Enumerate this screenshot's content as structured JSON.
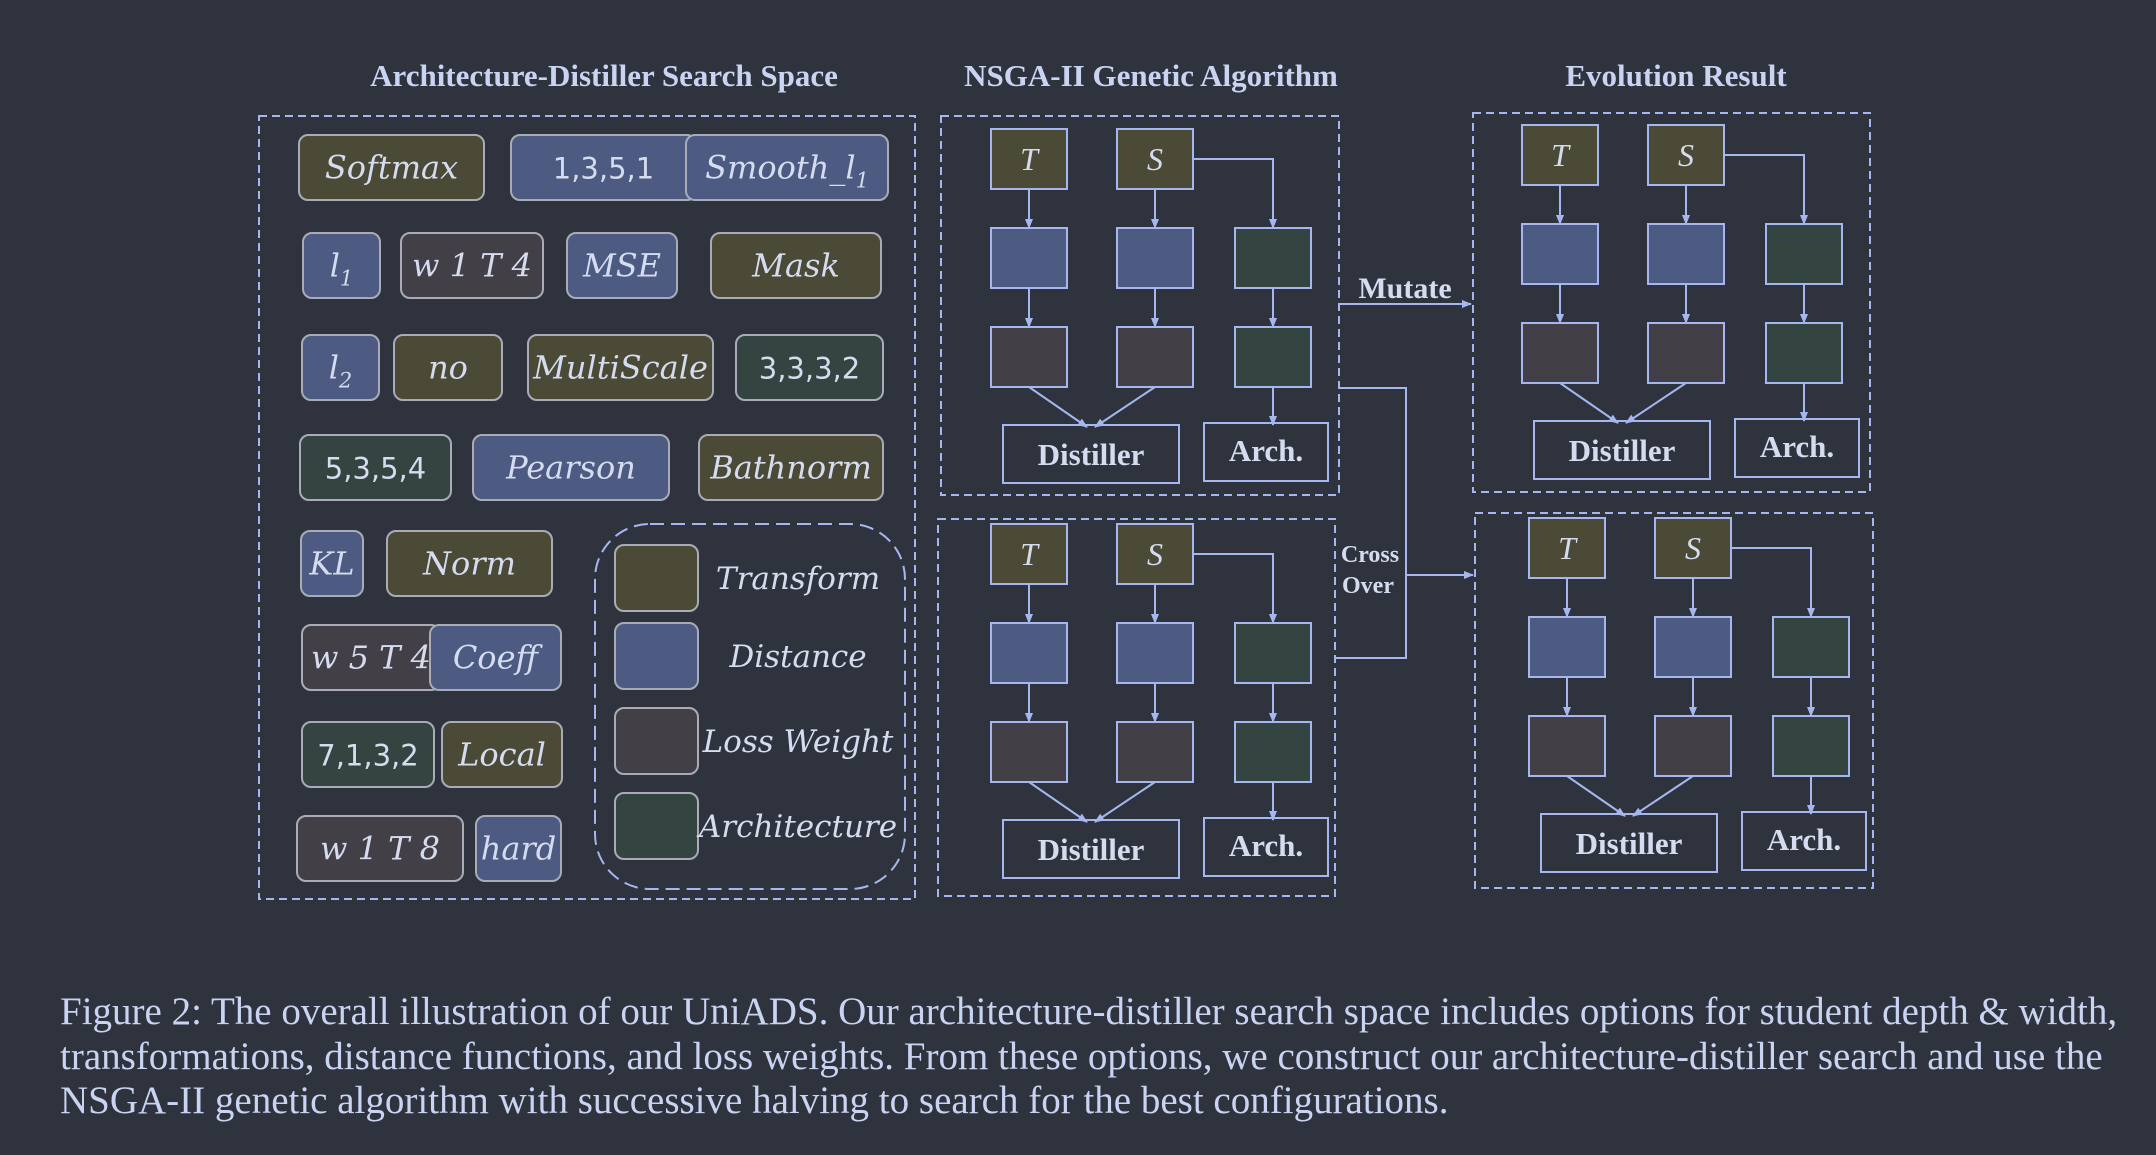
{
  "colors": {
    "background": "#2f333e",
    "transform": "#4a4a36",
    "distance": "#4d5a82",
    "loss_weight": "#433f47",
    "architecture": "#344441",
    "line": "#a6b7ef",
    "text": "#c9d3f2"
  },
  "titles": {
    "search_space": "Architecture-Distiller Search Space",
    "genetic": "NSGA-II Genetic Algorithm",
    "evolution": "Evolution Result"
  },
  "search_space": {
    "chips": [
      {
        "text": "Softmax",
        "kind": "transform"
      },
      {
        "text": "1,3,5,1",
        "kind": "distance"
      },
      {
        "text": "Smooth_l",
        "sub": "1",
        "kind": "distance"
      },
      {
        "text": "l",
        "sub": "1",
        "kind": "distance"
      },
      {
        "text": "w 1 T 4",
        "kind": "loss_weight"
      },
      {
        "text": "MSE",
        "kind": "distance"
      },
      {
        "text": "Mask",
        "kind": "transform"
      },
      {
        "text": "l",
        "sub": "2",
        "kind": "distance"
      },
      {
        "text": "no",
        "kind": "transform"
      },
      {
        "text": "MultiScale",
        "kind": "transform"
      },
      {
        "text": "3,3,3,2",
        "kind": "architecture"
      },
      {
        "text": "5,3,5,4",
        "kind": "architecture"
      },
      {
        "text": "Pearson",
        "kind": "distance"
      },
      {
        "text": "Bathnorm",
        "kind": "transform"
      },
      {
        "text": "KL",
        "kind": "distance"
      },
      {
        "text": "Norm",
        "kind": "transform"
      },
      {
        "text": "w 5 T 4",
        "kind": "loss_weight"
      },
      {
        "text": "Coeff",
        "kind": "distance"
      },
      {
        "text": "7,1,3,2",
        "kind": "architecture"
      },
      {
        "text": "Local",
        "kind": "transform"
      },
      {
        "text": "w 1 T 8",
        "kind": "loss_weight"
      },
      {
        "text": "hard",
        "kind": "distance"
      }
    ],
    "legend": [
      {
        "label": "Transform",
        "kind": "transform"
      },
      {
        "label": "Distance",
        "kind": "distance"
      },
      {
        "label": "Loss Weight",
        "kind": "loss_weight"
      },
      {
        "label": "Architecture",
        "kind": "architecture"
      }
    ]
  },
  "node_labels": {
    "teacher": "T",
    "student": "S",
    "distiller": "Distiller",
    "arch": "Arch."
  },
  "edges": {
    "mutate": "Mutate",
    "crossover_1": "Cross",
    "crossover_2": "Over"
  },
  "caption": "Figure 2: The overall illustration of our UniADS. Our architecture-distiller search space includes options for student depth & width, transformations, distance functions, and loss weights. From these options, we construct our architecture-distiller search and use the NSGA-II genetic algorithm with successive halving to search for the best configurations."
}
